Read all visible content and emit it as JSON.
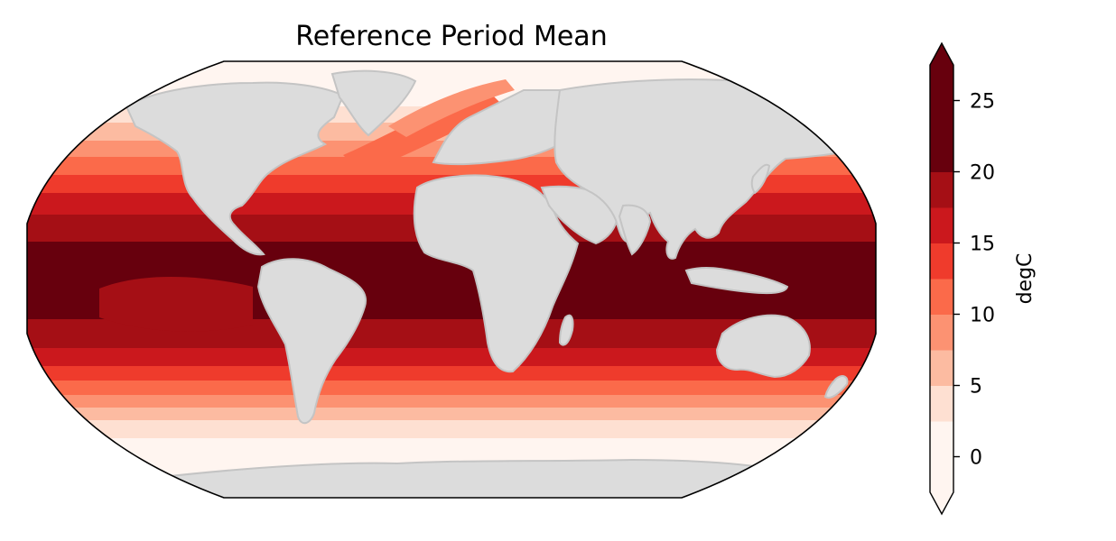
{
  "chart_data": {
    "type": "heatmap",
    "title": "Reference Period Mean",
    "projection": "Robinson global map",
    "colormap": "Reds",
    "land_color": "#dcdcdc",
    "coast_color": "#c4c4c4",
    "colorbar": {
      "label": "degC",
      "extend": "both",
      "levels": [
        -2.5,
        2.5,
        5,
        7.5,
        10,
        12.5,
        15,
        17.5,
        20,
        22.5,
        25,
        27.5
      ],
      "ticks": [
        "0",
        "5",
        "10",
        "15",
        "20",
        "25"
      ],
      "tick_values": [
        0,
        5,
        10,
        15,
        20,
        25
      ],
      "colors": [
        "#fff5f0",
        "#fee0d2",
        "#fcbba1",
        "#fc9272",
        "#fb6a4a",
        "#ef3b2c",
        "#cb181d",
        "#a50f15",
        "#67000d",
        "#67000d"
      ]
    }
  }
}
